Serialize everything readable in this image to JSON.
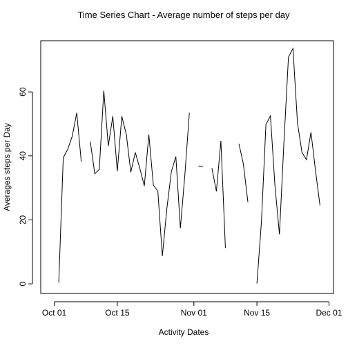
{
  "chart_data": {
    "type": "line",
    "title": "Time Series Chart - Average number of steps per day",
    "xlabel": "Activity Dates",
    "ylabel": "Averages steps per Day",
    "x_start": "2012-10-01",
    "xlim": [
      "2012-09-28",
      "2012-12-02"
    ],
    "ylim": [
      -3,
      76
    ],
    "xticks": [
      {
        "date": "2012-10-01",
        "label": "Oct 01"
      },
      {
        "date": "2012-10-15",
        "label": "Oct 15"
      },
      {
        "date": "2012-11-01",
        "label": "Nov 01"
      },
      {
        "date": "2012-11-15",
        "label": "Nov 15"
      },
      {
        "date": "2012-12-01",
        "label": "Dec 01"
      }
    ],
    "yticks": [
      0,
      20,
      40,
      60
    ],
    "grid": false,
    "series": [
      {
        "x": [
          "2012-10-01",
          "2012-10-02",
          "2012-10-03",
          "2012-10-04",
          "2012-10-05",
          "2012-10-06",
          "2012-10-07",
          "2012-10-08",
          "2012-10-09",
          "2012-10-10",
          "2012-10-11",
          "2012-10-12",
          "2012-10-13",
          "2012-10-14",
          "2012-10-15",
          "2012-10-16",
          "2012-10-17",
          "2012-10-18",
          "2012-10-19",
          "2012-10-20",
          "2012-10-21",
          "2012-10-22",
          "2012-10-23",
          "2012-10-24",
          "2012-10-25",
          "2012-10-26",
          "2012-10-27",
          "2012-10-28",
          "2012-10-29",
          "2012-10-30",
          "2012-10-31",
          "2012-11-01",
          "2012-11-02",
          "2012-11-03",
          "2012-11-04",
          "2012-11-05",
          "2012-11-06",
          "2012-11-07",
          "2012-11-08",
          "2012-11-09",
          "2012-11-10",
          "2012-11-11",
          "2012-11-12",
          "2012-11-13",
          "2012-11-14",
          "2012-11-15",
          "2012-11-16",
          "2012-11-17",
          "2012-11-18",
          "2012-11-19",
          "2012-11-20",
          "2012-11-21",
          "2012-11-22",
          "2012-11-23",
          "2012-11-24",
          "2012-11-25",
          "2012-11-26",
          "2012-11-27",
          "2012-11-28",
          "2012-11-29",
          "2012-11-30"
        ],
        "y": [
          null,
          0.4,
          39.4,
          42.1,
          46.2,
          53.5,
          38.2,
          null,
          44.5,
          34.4,
          35.8,
          60.4,
          43.1,
          52.4,
          35.2,
          52.4,
          46.7,
          34.9,
          41.1,
          36.1,
          30.6,
          46.7,
          30.9,
          29.0,
          8.7,
          23.5,
          35.1,
          39.8,
          17.4,
          34.1,
          53.5,
          null,
          36.8,
          36.7,
          null,
          36.2,
          28.9,
          44.7,
          11.2,
          null,
          null,
          43.8,
          37.4,
          25.5,
          null,
          0.1,
          19.4,
          49.8,
          52.5,
          30.7,
          15.5,
          44.4,
          70.9,
          73.6,
          50.3,
          41.1,
          38.8,
          47.4,
          35.4,
          24.5,
          null
        ]
      }
    ]
  }
}
